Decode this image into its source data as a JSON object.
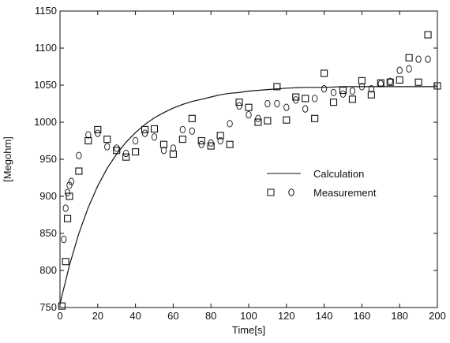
{
  "colors": {
    "ink": "#111111",
    "background": "#ffffff"
  },
  "chart_data": {
    "type": "scatter",
    "title": "",
    "xlabel": "Time[s]",
    "ylabel": "[Megohm]",
    "xlim": [
      0,
      200
    ],
    "ylim": [
      750,
      1150
    ],
    "grid": false,
    "legend_position": "center-right",
    "xticks": [
      0,
      20,
      40,
      60,
      80,
      100,
      120,
      140,
      160,
      180,
      200
    ],
    "yticks": [
      750,
      800,
      850,
      900,
      950,
      1000,
      1050,
      1100,
      1150
    ],
    "xtick_labels": [
      "0",
      "20",
      "40",
      "60",
      "80",
      "100",
      "120",
      "140",
      "160",
      "180",
      "200"
    ],
    "ytick_labels": [
      "750",
      "800",
      "850",
      "900",
      "950",
      "1000",
      "1050",
      "1100",
      "1150"
    ],
    "legend": [
      {
        "label": "Calculation",
        "marker": "line"
      },
      {
        "label": "Measurement",
        "marker": "square-circle"
      }
    ],
    "series": [
      {
        "name": "Calculation",
        "kind": "line",
        "x": [
          0,
          5,
          10,
          15,
          20,
          25,
          30,
          35,
          40,
          45,
          50,
          55,
          60,
          65,
          70,
          75,
          80,
          85,
          90,
          95,
          100,
          110,
          120,
          130,
          140,
          150,
          160,
          170,
          180,
          190,
          200
        ],
        "y": [
          755,
          807,
          850,
          885,
          914,
          938,
          957,
          973,
          986,
          997,
          1006,
          1013,
          1019,
          1024,
          1028,
          1031,
          1034,
          1037,
          1039,
          1040,
          1042,
          1044,
          1046,
          1047,
          1047,
          1048,
          1048,
          1048,
          1048,
          1048,
          1048
        ]
      },
      {
        "name": "Measurement",
        "kind": "square",
        "x": [
          1,
          3,
          4,
          5,
          10,
          15,
          20,
          25,
          30,
          35,
          40,
          45,
          50,
          55,
          60,
          65,
          70,
          75,
          80,
          85,
          90,
          95,
          100,
          105,
          110,
          115,
          120,
          125,
          130,
          135,
          140,
          145,
          150,
          155,
          160,
          165,
          170,
          175,
          180,
          185,
          190,
          195,
          200
        ],
        "y": [
          752,
          812,
          870,
          900,
          934,
          975,
          990,
          977,
          962,
          953,
          960,
          990,
          991,
          970,
          957,
          977,
          1005,
          975,
          968,
          982,
          970,
          1027,
          1020,
          1000,
          1002,
          1048,
          1003,
          1034,
          1032,
          1005,
          1066,
          1027,
          1043,
          1031,
          1056,
          1037,
          1053,
          1054,
          1057,
          1087,
          1054,
          1118,
          1049
        ]
      },
      {
        "name": "Measurement",
        "kind": "circle",
        "x": [
          2,
          3,
          4,
          5,
          6,
          10,
          15,
          20,
          25,
          30,
          35,
          40,
          45,
          50,
          55,
          60,
          65,
          70,
          75,
          80,
          85,
          90,
          95,
          100,
          105,
          110,
          115,
          120,
          125,
          130,
          135,
          140,
          145,
          150,
          155,
          160,
          165,
          170,
          175,
          180,
          185,
          190,
          195
        ],
        "y": [
          842,
          884,
          905,
          915,
          920,
          955,
          983,
          985,
          967,
          965,
          958,
          975,
          985,
          980,
          962,
          965,
          990,
          988,
          970,
          972,
          975,
          998,
          1022,
          1010,
          1005,
          1025,
          1025,
          1020,
          1030,
          1018,
          1032,
          1045,
          1040,
          1038,
          1042,
          1048,
          1045,
          1052,
          1055,
          1070,
          1072,
          1085,
          1085
        ]
      }
    ]
  }
}
